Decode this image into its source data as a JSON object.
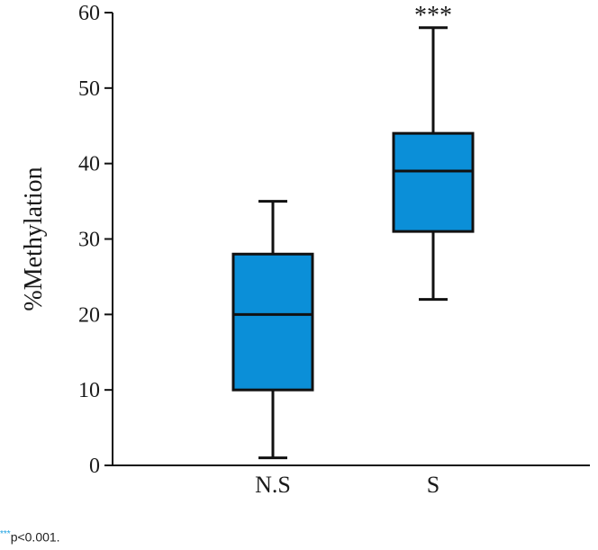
{
  "chart_data": {
    "type": "box",
    "ylabel": "%Methylation",
    "xlabel": "",
    "ylim": [
      0,
      60
    ],
    "yticks": [
      "0",
      "10",
      "20",
      "30",
      "40",
      "50",
      "60"
    ],
    "categories": [
      "N.S",
      "S"
    ],
    "boxes": [
      {
        "category": "N.S",
        "min": 1,
        "q1": 10,
        "median": 20,
        "q3": 28,
        "max": 35,
        "annotation": ""
      },
      {
        "category": "S",
        "min": 22,
        "q1": 31,
        "median": 39,
        "q3": 44,
        "max": 58,
        "annotation": "***"
      }
    ],
    "box_color": "#0b8fd8",
    "grid": false
  },
  "footnote": {
    "marker": "***",
    "text": "p<0.001."
  }
}
